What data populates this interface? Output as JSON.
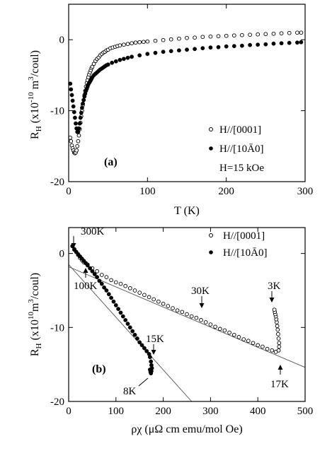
{
  "chart_data": [
    {
      "panel": "(a)",
      "type": "scatter",
      "xlabel": "T (K)",
      "ylabel_main": "R",
      "ylabel_sub": "H",
      "ylabel_unit": " (x10",
      "ylabel_exp": "-10",
      "ylabel_tail": " m",
      "ylabel_exp2": "3",
      "ylabel_end": "/coul)",
      "xlim": [
        0,
        300
      ],
      "ylim": [
        -20,
        5
      ],
      "xticks": [
        0,
        100,
        200,
        300
      ],
      "yticks": [
        0,
        -10,
        -20
      ],
      "legend_position": "bottom-right",
      "field_note": "H=15 kOe",
      "series": [
        {
          "name": "H//[0001]",
          "marker": "open-circle",
          "x": [
            2,
            3,
            4,
            5,
            6,
            7,
            8,
            9,
            10,
            11,
            12,
            13,
            14,
            15,
            16,
            17,
            18,
            19,
            20,
            21,
            22,
            23,
            24,
            25,
            26,
            27,
            28,
            29,
            30,
            32,
            34,
            36,
            38,
            40,
            42,
            44,
            46,
            48,
            50,
            53,
            56,
            59,
            62,
            65,
            70,
            75,
            80,
            85,
            90,
            95,
            100,
            110,
            120,
            130,
            140,
            150,
            160,
            170,
            180,
            190,
            200,
            210,
            220,
            230,
            240,
            250,
            260,
            270,
            280,
            290,
            295
          ],
          "y": [
            -13.8,
            -14.3,
            -14.9,
            -15.3,
            -15.6,
            -15.9,
            -16.0,
            -15.9,
            -15.6,
            -15.0,
            -14.3,
            -13.5,
            -12.6,
            -11.7,
            -10.8,
            -10.0,
            -9.2,
            -8.5,
            -7.8,
            -7.2,
            -6.6,
            -6.1,
            -5.7,
            -5.3,
            -4.9,
            -4.6,
            -4.3,
            -4.0,
            -3.8,
            -3.4,
            -3.0,
            -2.7,
            -2.5,
            -2.2,
            -2.0,
            -1.8,
            -1.7,
            -1.5,
            -1.4,
            -1.2,
            -1.1,
            -1.0,
            -0.9,
            -0.8,
            -0.7,
            -0.6,
            -0.5,
            -0.4,
            -0.35,
            -0.3,
            -0.25,
            -0.15,
            -0.05,
            0.05,
            0.15,
            0.25,
            0.3,
            0.4,
            0.45,
            0.5,
            0.55,
            0.6,
            0.65,
            0.7,
            0.75,
            0.8,
            0.85,
            0.9,
            0.95,
            1.0,
            1.0
          ]
        },
        {
          "name": "H//[10Ā0]",
          "marker": "filled-circle",
          "x": [
            2,
            3,
            4,
            5,
            6,
            7,
            8,
            9,
            10,
            11,
            12,
            13,
            14,
            15,
            16,
            17,
            18,
            19,
            20,
            21,
            22,
            23,
            24,
            25,
            26,
            27,
            28,
            29,
            30,
            32,
            34,
            36,
            38,
            40,
            42,
            44,
            46,
            48,
            50,
            55,
            60,
            65,
            70,
            75,
            80,
            90,
            100,
            110,
            120,
            130,
            140,
            150,
            160,
            170,
            180,
            190,
            200,
            210,
            220,
            230,
            240,
            250,
            260,
            270,
            280,
            290,
            295
          ],
          "y": [
            -6.2,
            -7.0,
            -7.8,
            -8.6,
            -9.4,
            -10.2,
            -11.0,
            -11.8,
            -12.5,
            -13.0,
            -13.0,
            -12.5,
            -11.8,
            -11.0,
            -10.3,
            -9.6,
            -9.0,
            -8.5,
            -8.0,
            -7.6,
            -7.2,
            -6.9,
            -6.6,
            -6.3,
            -6.1,
            -5.9,
            -5.7,
            -5.5,
            -5.3,
            -5.0,
            -4.8,
            -4.6,
            -4.4,
            -4.2,
            -4.05,
            -3.9,
            -3.75,
            -3.6,
            -3.5,
            -3.25,
            -3.05,
            -2.85,
            -2.7,
            -2.55,
            -2.4,
            -2.2,
            -2.0,
            -1.85,
            -1.7,
            -1.6,
            -1.5,
            -1.4,
            -1.3,
            -1.2,
            -1.1,
            -1.05,
            -0.95,
            -0.9,
            -0.85,
            -0.75,
            -0.7,
            -0.65,
            -0.55,
            -0.5,
            -0.45,
            -0.4,
            -0.35
          ]
        }
      ]
    },
    {
      "panel": "(b)",
      "type": "scatter",
      "xlabel": "ρχ (μΩ cm emu/mol Oe)",
      "ylabel_main": "R",
      "ylabel_sub": "H",
      "ylabel_unit": " (x10",
      "ylabel_exp": "10",
      "ylabel_tail": "m",
      "ylabel_exp2": "3",
      "ylabel_end": "/coul)",
      "xlim": [
        0,
        500
      ],
      "ylim": [
        -20,
        3.5
      ],
      "xticks": [
        0,
        100,
        200,
        300,
        400,
        500
      ],
      "yticks": [
        0,
        -10,
        -20
      ],
      "legend_position": "top-right",
      "annotations": [
        "300K",
        "100K",
        "30K",
        "3K",
        "15K",
        "8K",
        "17K"
      ],
      "series": [
        {
          "name": "H//[0001]",
          "marker": "open-circle",
          "x": [
            8,
            12,
            16,
            20,
            24,
            28,
            32,
            40,
            50,
            60,
            70,
            80,
            90,
            100,
            110,
            120,
            130,
            140,
            150,
            160,
            170,
            180,
            190,
            200,
            210,
            220,
            230,
            240,
            250,
            260,
            270,
            280,
            290,
            300,
            310,
            320,
            330,
            340,
            350,
            360,
            370,
            380,
            390,
            400,
            410,
            420,
            430,
            438,
            444,
            445,
            445,
            444,
            443,
            442,
            441,
            440,
            439,
            438,
            437,
            436,
            435
          ],
          "y": [
            1.0,
            0.6,
            0.2,
            -0.2,
            -0.6,
            -0.9,
            -1.2,
            -1.5,
            -2.0,
            -2.4,
            -2.9,
            -3.2,
            -3.6,
            -3.9,
            -4.1,
            -4.4,
            -4.7,
            -5.0,
            -5.3,
            -5.6,
            -5.9,
            -6.2,
            -6.5,
            -6.8,
            -7.1,
            -7.4,
            -7.7,
            -7.9,
            -8.2,
            -8.5,
            -8.7,
            -9.0,
            -9.3,
            -9.6,
            -9.9,
            -10.2,
            -10.4,
            -10.7,
            -11.0,
            -11.3,
            -11.6,
            -11.8,
            -12.1,
            -12.4,
            -12.6,
            -12.9,
            -13.1,
            -13.3,
            -13.1,
            -12.6,
            -12.1,
            -11.5,
            -10.9,
            -10.3,
            -9.8,
            -9.3,
            -8.9,
            -8.5,
            -8.2,
            -7.9,
            -7.6
          ]
        },
        {
          "name": "H//[10Ā0]",
          "marker": "filled-circle",
          "x": [
            8,
            12,
            16,
            20,
            24,
            28,
            32,
            36,
            40,
            45,
            50,
            55,
            60,
            65,
            70,
            75,
            80,
            85,
            90,
            95,
            100,
            105,
            110,
            115,
            120,
            125,
            130,
            135,
            140,
            145,
            150,
            155,
            160,
            165,
            170,
            172,
            174,
            175,
            176,
            175,
            174,
            173,
            172
          ],
          "y": [
            1.0,
            0.5,
            0.2,
            -0.1,
            -0.4,
            -0.7,
            -1.0,
            -1.3,
            -1.6,
            -2.0,
            -2.4,
            -2.8,
            -3.2,
            -3.7,
            -4.1,
            -4.6,
            -5.0,
            -5.5,
            -6.0,
            -6.5,
            -7.0,
            -7.5,
            -8.0,
            -8.5,
            -9.0,
            -9.5,
            -10.0,
            -10.5,
            -11.0,
            -11.5,
            -12.0,
            -12.4,
            -12.8,
            -13.2,
            -13.6,
            -14.0,
            -14.6,
            -15.1,
            -15.5,
            -15.9,
            -16.2,
            -16.0,
            -15.7
          ]
        }
      ],
      "fit_lines": [
        {
          "x": [
            0,
            500
          ],
          "y": [
            -1.8,
            -15.4
          ]
        },
        {
          "x": [
            0,
            260
          ],
          "y": [
            -1.5,
            -20
          ]
        }
      ]
    }
  ]
}
